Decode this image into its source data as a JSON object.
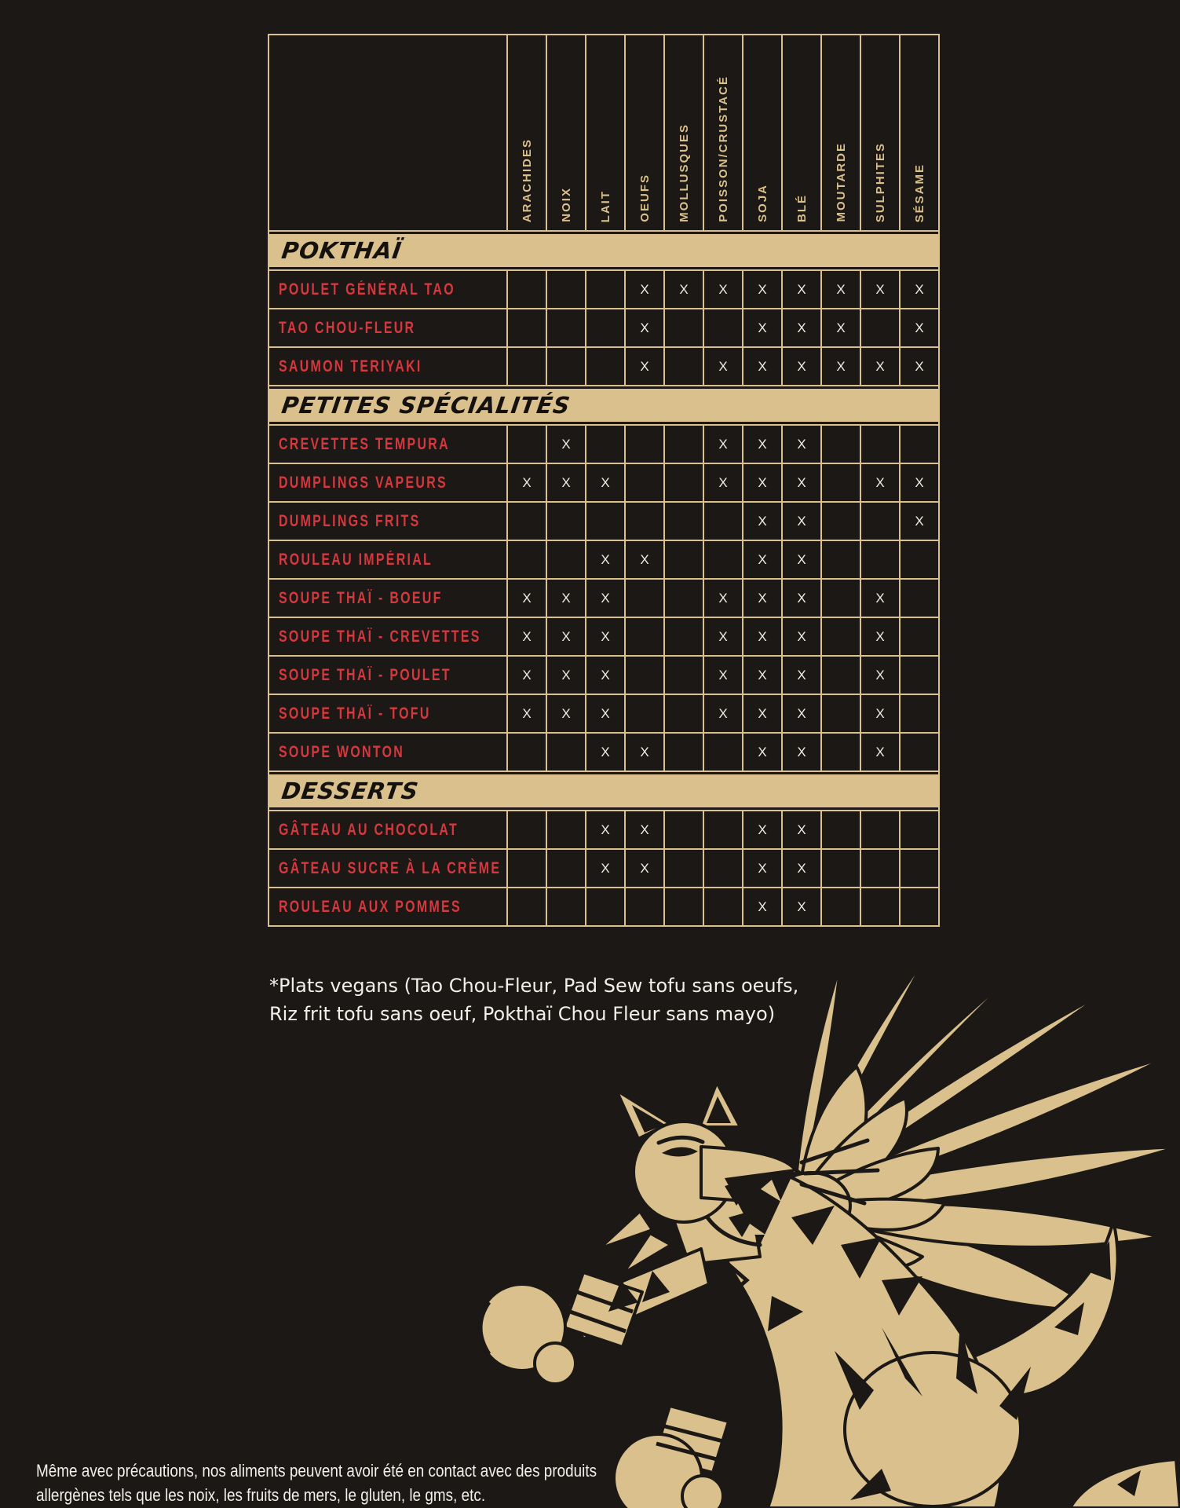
{
  "colors": {
    "background": "#1b1815",
    "gold": "#d9c08d",
    "red": "#d5383e",
    "mark": "#efece4"
  },
  "allergen_table": {
    "mark": "X",
    "columns": [
      "ARACHIDES",
      "NOIX",
      "LAIT",
      "OEUFS",
      "MOLLUSQUES",
      "POISSON/CRUSTACÉ",
      "SOJA",
      "BLÉ",
      "MOUTARDE",
      "SULPHITES",
      "SÉSAME"
    ],
    "sections": [
      {
        "title": "POKTHAÏ",
        "rows": [
          {
            "label": "POULET GÉNÉRAL TAO",
            "marks": [
              0,
              0,
              0,
              1,
              1,
              1,
              1,
              1,
              1,
              1,
              1
            ]
          },
          {
            "label": "TAO CHOU-FLEUR",
            "marks": [
              0,
              0,
              0,
              1,
              0,
              0,
              1,
              1,
              1,
              0,
              1
            ]
          },
          {
            "label": "SAUMON TERIYAKI",
            "marks": [
              0,
              0,
              0,
              1,
              0,
              1,
              1,
              1,
              1,
              1,
              1
            ]
          }
        ]
      },
      {
        "title": "PETITES SPÉCIALITÉS",
        "rows": [
          {
            "label": "CREVETTES TEMPURA",
            "marks": [
              0,
              1,
              0,
              0,
              0,
              1,
              1,
              1,
              0,
              0,
              0
            ]
          },
          {
            "label": "DUMPLINGS VAPEURS",
            "marks": [
              1,
              1,
              1,
              0,
              0,
              1,
              1,
              1,
              0,
              1,
              1
            ]
          },
          {
            "label": "DUMPLINGS FRITS",
            "marks": [
              0,
              0,
              0,
              0,
              0,
              0,
              1,
              1,
              0,
              0,
              1
            ]
          },
          {
            "label": "ROULEAU IMPÉRIAL",
            "marks": [
              0,
              0,
              1,
              1,
              0,
              0,
              1,
              1,
              0,
              0,
              0
            ]
          },
          {
            "label": "SOUPE THAÏ - BOEUF",
            "marks": [
              1,
              1,
              1,
              0,
              0,
              1,
              1,
              1,
              0,
              1,
              0
            ]
          },
          {
            "label": "SOUPE THAÏ - CREVETTES",
            "marks": [
              1,
              1,
              1,
              0,
              0,
              1,
              1,
              1,
              0,
              1,
              0
            ]
          },
          {
            "label": "SOUPE THAÏ - POULET",
            "marks": [
              1,
              1,
              1,
              0,
              0,
              1,
              1,
              1,
              0,
              1,
              0
            ]
          },
          {
            "label": "SOUPE THAÏ - TOFU",
            "marks": [
              1,
              1,
              1,
              0,
              0,
              1,
              1,
              1,
              0,
              1,
              0
            ]
          },
          {
            "label": "SOUPE WONTON",
            "marks": [
              0,
              0,
              1,
              1,
              0,
              0,
              1,
              1,
              0,
              1,
              0
            ]
          }
        ]
      },
      {
        "title": "DESSERTS",
        "rows": [
          {
            "label": "GÂTEAU AU CHOCOLAT",
            "marks": [
              0,
              0,
              1,
              1,
              0,
              0,
              1,
              1,
              0,
              0,
              0
            ]
          },
          {
            "label": "GÂTEAU SUCRE À LA CRÈME",
            "marks": [
              0,
              0,
              1,
              1,
              0,
              0,
              1,
              1,
              0,
              0,
              0
            ]
          },
          {
            "label": "ROULEAU AUX POMMES",
            "marks": [
              0,
              0,
              0,
              0,
              0,
              0,
              1,
              1,
              0,
              0,
              0
            ]
          }
        ]
      }
    ]
  },
  "footnote": {
    "line1": "*Plats vegans (Tao Chou-Fleur, Pad Sew tofu sans oeufs,",
    "line2": "Riz frit tofu sans oeuf, Pokthaï Chou Fleur sans mayo)"
  },
  "disclaimer": {
    "line1": "Même avec précautions, nos aliments peuvent avoir été en contact avec des produits",
    "line2": "allergènes tels que les noix, les fruits de mers, le gluten, le gms, etc."
  },
  "illustration": {
    "name": "winged-tiger-with-boxing-gloves"
  }
}
